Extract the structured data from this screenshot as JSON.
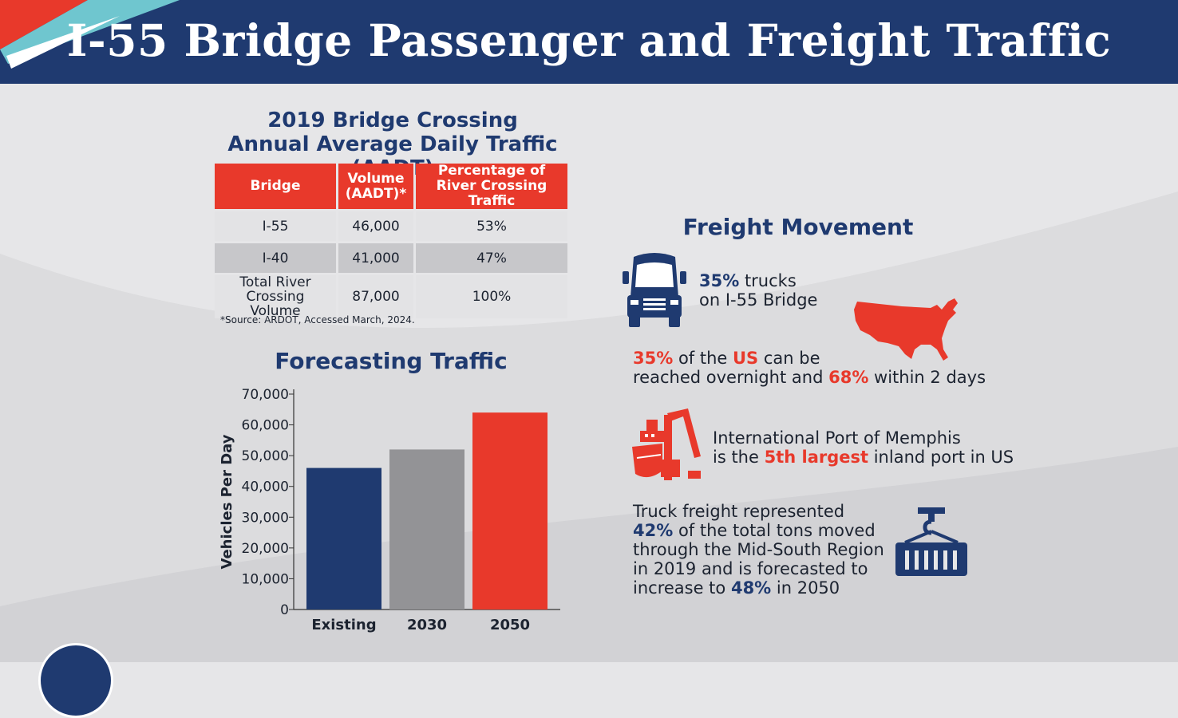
{
  "header": {
    "title": "I-55 Bridge Passenger and Freight Traffic"
  },
  "colors": {
    "navy": "#1f3a70",
    "red": "#e8392b",
    "gray": "#939396",
    "background": "#e6e6e8"
  },
  "aadt": {
    "title_line1": "2019 Bridge Crossing",
    "title_line2": "Annual Average Daily Traffic (AADT)",
    "headers": {
      "bridge": "Bridge",
      "volume": "Volume (AADT)*",
      "percentage": "Percentage of River Crossing Traffic"
    },
    "rows": [
      {
        "bridge": "I-55",
        "volume": "46,000",
        "percentage": "53%"
      },
      {
        "bridge": "I-40",
        "volume": "41,000",
        "percentage": "47%"
      },
      {
        "bridge": "Total River Crossing Volume",
        "volume": "87,000",
        "percentage": "100%"
      }
    ],
    "source": "*Source: ARDOT, Accessed March, 2024."
  },
  "forecast": {
    "title": "Forecasting Traffic"
  },
  "chart_data": {
    "type": "bar",
    "categories": [
      "Existing",
      "2030",
      "2050"
    ],
    "values": [
      46000,
      52000,
      64000
    ],
    "bar_colors": [
      "#1f3a70",
      "#939396",
      "#e8392b"
    ],
    "ylabel": "Vehicles Per Day",
    "ylim": [
      0,
      70000
    ],
    "yticks": [
      "0",
      "10,000",
      "20,000",
      "30,000",
      "40,000",
      "50,000",
      "60,000",
      "70,000"
    ],
    "grid": false
  },
  "freight": {
    "title": "Freight Movement",
    "trucks": {
      "pct": "35%",
      "text1": " trucks",
      "line2": "on I-55 Bridge",
      "icon": "truck-icon"
    },
    "reach": {
      "pct1": "35%",
      "t1": " of the ",
      "us": "US",
      "t2": " can be",
      "t3": "reached overnight and ",
      "pct2": "68%",
      "t4": " within 2 days",
      "icon": "us-map-icon"
    },
    "port": {
      "line1": "International Port of Memphis",
      "t1": "is the ",
      "rank": "5th largest",
      "t2": " inland port in US",
      "icon": "port-crane-icon"
    },
    "truck_freight": {
      "line1": "Truck freight represented",
      "pct1": "42%",
      "line2_rest": " of the total tons moved",
      "line3": "through the Mid-South Region",
      "line4": "in 2019 and is forecasted to",
      "line5_start": "increase to ",
      "pct2": "48%",
      "line5_end": " in 2050",
      "icon": "container-icon"
    }
  }
}
